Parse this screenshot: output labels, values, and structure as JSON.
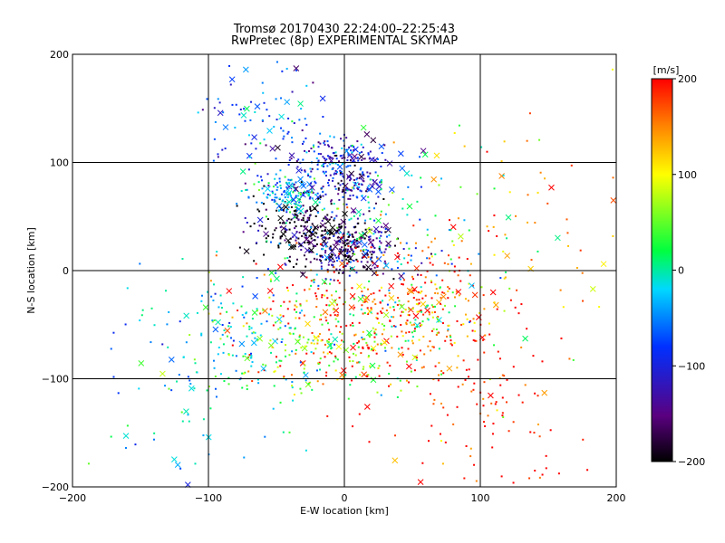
{
  "chart_data": {
    "type": "scatter",
    "title": "Tromsø 20170430 22:24:00–22:25:43",
    "subtitle": "RwPretec (8p) EXPERIMENTAL SKYMAP",
    "xlabel": "E-W location [km]",
    "ylabel": "N-S location [km]",
    "xlim": [
      -200,
      200
    ],
    "ylim": [
      -200,
      200
    ],
    "x_ticks": [
      "−200",
      "−100",
      "0",
      "100",
      "200"
    ],
    "y_ticks": [
      "200",
      "100",
      "0",
      "−100",
      "−200"
    ],
    "grid": true,
    "colorbar": {
      "label": "[m/s]",
      "range": [
        -200,
        200
      ],
      "ticks": [
        "200",
        "100",
        "0",
        "−100",
        "−200"
      ],
      "colormap": "rainbow (black → purple → blue → cyan → green → yellow → red)"
    },
    "marker_legend": "small dots and larger x markers; color encodes velocity",
    "clusters": [
      {
        "x": 5,
        "y": 20,
        "v": -150
      },
      {
        "x": -30,
        "y": 40,
        "v": -190
      },
      {
        "x": -40,
        "y": 70,
        "v": -40
      },
      {
        "x": 5,
        "y": 80,
        "v": -120
      },
      {
        "x": -10,
        "y": 105,
        "v": -110
      },
      {
        "x": -60,
        "y": 140,
        "v": -70
      },
      {
        "x": 15,
        "y": -40,
        "v": 190
      },
      {
        "x": 60,
        "y": -40,
        "v": 170
      },
      {
        "x": 100,
        "y": -130,
        "v": 200
      },
      {
        "x": -80,
        "y": -60,
        "v": -10
      },
      {
        "x": -20,
        "y": -60,
        "v": 60
      },
      {
        "x": 40,
        "y": -60,
        "v": 40
      },
      {
        "x": 120,
        "y": 40,
        "v": 130
      },
      {
        "x": -120,
        "y": -120,
        "v": -20
      },
      {
        "x": 30,
        "y": 40,
        "v": -5
      }
    ]
  }
}
